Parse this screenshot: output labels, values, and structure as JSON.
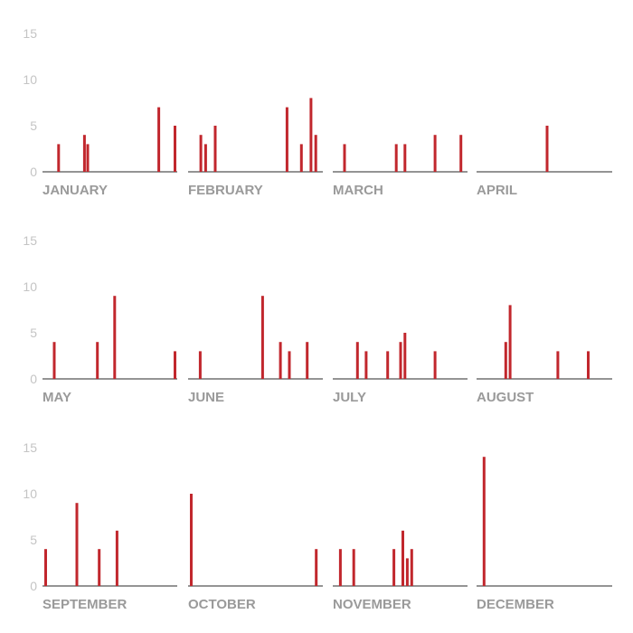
{
  "chart_data": {
    "type": "bar",
    "chart_kind": "small-multiples daily bar chart",
    "bar_color": "#c1272d",
    "baseline_color": "#555555",
    "tick_color": "#c4c4c4",
    "label_color": "#9a9a9a",
    "y_ticks": [
      "0",
      "5",
      "10",
      "15"
    ],
    "ylim": [
      0,
      15
    ],
    "grid": false,
    "panels": [
      {
        "month": "JANUARY",
        "days": 31,
        "bars": [
          {
            "day": 5,
            "value": 3
          },
          {
            "day": 13,
            "value": 4
          },
          {
            "day": 14,
            "value": 3
          },
          {
            "day": 36,
            "value": 7
          },
          {
            "day": 41,
            "value": 5
          }
        ]
      },
      {
        "month": "FEBRUARY",
        "days": 28,
        "bars": [
          {
            "day": 3,
            "value": 4
          },
          {
            "day": 4,
            "value": 3
          },
          {
            "day": 6,
            "value": 5
          },
          {
            "day": 21,
            "value": 7
          },
          {
            "day": 24,
            "value": 3
          },
          {
            "day": 26,
            "value": 8
          },
          {
            "day": 27,
            "value": 4
          }
        ]
      },
      {
        "month": "MARCH",
        "days": 31,
        "bars": [
          {
            "day": 3,
            "value": 3
          },
          {
            "day": 15,
            "value": 3
          },
          {
            "day": 17,
            "value": 3
          },
          {
            "day": 24,
            "value": 4
          },
          {
            "day": 30,
            "value": 4
          }
        ]
      },
      {
        "month": "APRIL",
        "days": 30,
        "bars": [
          {
            "day": 16,
            "value": 5
          }
        ]
      },
      {
        "month": "MAY",
        "days": 31,
        "bars": [
          {
            "day": 3,
            "value": 4
          },
          {
            "day": 13,
            "value": 4
          },
          {
            "day": 17,
            "value": 9
          },
          {
            "day": 31,
            "value": 3
          }
        ]
      },
      {
        "month": "JUNE",
        "days": 30,
        "bars": [
          {
            "day": 3,
            "value": 3
          },
          {
            "day": 17,
            "value": 9
          },
          {
            "day": 21,
            "value": 4
          },
          {
            "day": 23,
            "value": 3
          },
          {
            "day": 27,
            "value": 4
          }
        ]
      },
      {
        "month": "JULY",
        "days": 31,
        "bars": [
          {
            "day": 6,
            "value": 4
          },
          {
            "day": 8,
            "value": 3
          },
          {
            "day": 13,
            "value": 3
          },
          {
            "day": 16,
            "value": 4
          },
          {
            "day": 17,
            "value": 5
          },
          {
            "day": 24,
            "value": 3
          }
        ]
      },
      {
        "month": "AUGUST",
        "days": 31,
        "bars": [
          {
            "day": 7,
            "value": 4
          },
          {
            "day": 8,
            "value": 8
          },
          {
            "day": 19,
            "value": 3
          },
          {
            "day": 26,
            "value": 3
          }
        ]
      },
      {
        "month": "SEPTEMBER",
        "days": 30,
        "bars": [
          {
            "day": 1,
            "value": 4
          },
          {
            "day": 8,
            "value": 9
          },
          {
            "day": 13,
            "value": 4
          },
          {
            "day": 17,
            "value": 6
          }
        ]
      },
      {
        "month": "OCTOBER",
        "days": 31,
        "bars": [
          {
            "day": 1,
            "value": 10
          },
          {
            "day": 30,
            "value": 4
          }
        ]
      },
      {
        "month": "NOVEMBER",
        "days": 30,
        "bars": [
          {
            "day": 2,
            "value": 4
          },
          {
            "day": 5,
            "value": 4
          },
          {
            "day": 14,
            "value": 4
          },
          {
            "day": 16,
            "value": 6
          },
          {
            "day": 17,
            "value": 3
          },
          {
            "day": 18,
            "value": 4
          }
        ]
      },
      {
        "month": "DECEMBER",
        "days": 31,
        "bars": [
          {
            "day": 2,
            "value": 14
          }
        ]
      }
    ]
  }
}
